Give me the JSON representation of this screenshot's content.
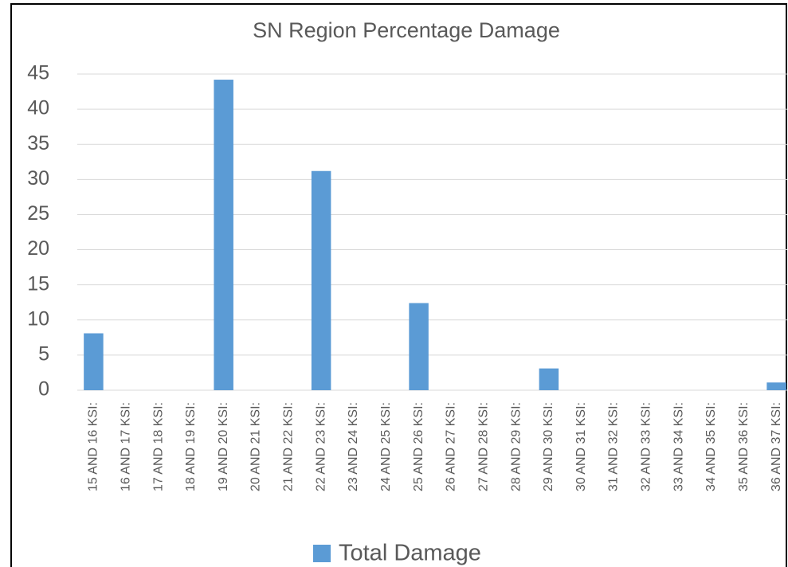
{
  "chart_data": {
    "type": "bar",
    "title": "SN Region Percentage Damage",
    "categories": [
      "15 AND 16 KSI:",
      "16 AND 17 KSI:",
      "17 AND 18 KSI:",
      "18 AND 19 KSI:",
      "19 AND 20 KSI:",
      "20 AND 21 KSI:",
      "21 AND 22 KSI:",
      "22 AND 23 KSI:",
      "23 AND 24 KSI:",
      "24 AND 25 KSI:",
      "25 AND 26 KSI:",
      "26 AND 27 KSI:",
      "27 AND 28 KSI:",
      "28 AND 29 KSI:",
      "29 AND 30 KSI:",
      "30 AND 31 KSI:",
      "31 AND 32 KSI:",
      "32 AND 33 KSI:",
      "33 AND 34 KSI:",
      "34 AND 35 KSI:",
      "35 AND 36 KSI:",
      "36 AND 37 KSI:"
    ],
    "series": [
      {
        "name": "Total Damage",
        "color": "#5b9bd5",
        "values": [
          8.1,
          0,
          0,
          0,
          44.2,
          0,
          0,
          31.2,
          0,
          0,
          12.4,
          0,
          0,
          0,
          3.1,
          0,
          0,
          0,
          0,
          0,
          0,
          1.1
        ]
      }
    ],
    "ylim": [
      0,
      45
    ],
    "yticks": [
      0,
      5,
      10,
      15,
      20,
      25,
      30,
      35,
      40,
      45
    ],
    "grid": true,
    "legend": "bottom"
  }
}
